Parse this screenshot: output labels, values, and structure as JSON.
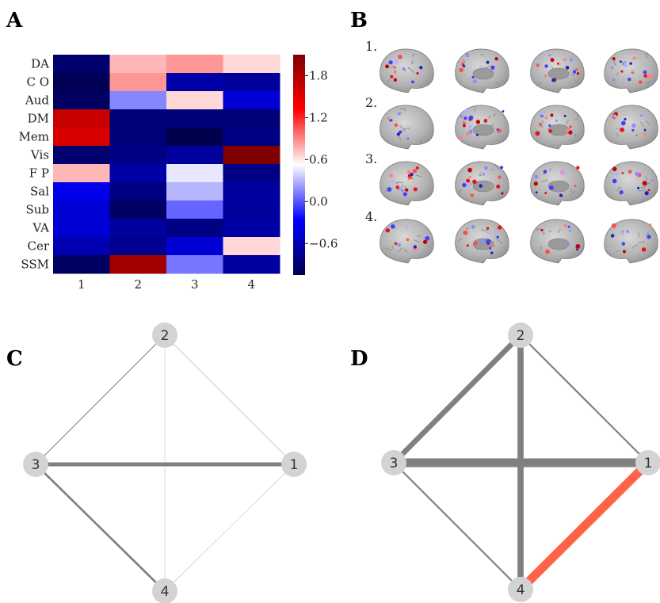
{
  "panels": {
    "a": "A",
    "b": "B",
    "c": "C",
    "d": "D"
  },
  "chart_data": [
    {
      "type": "heatmap",
      "rows": [
        "DA",
        "C O",
        "Aud",
        "DM",
        "Mem",
        "Vis",
        "F P",
        "Sal",
        "Sub",
        "VA",
        "Cer",
        "SSM"
      ],
      "columns": [
        "1",
        "2",
        "3",
        "4"
      ],
      "values": [
        [
          -0.9,
          0.75,
          0.85,
          0.65
        ],
        [
          -1.0,
          0.85,
          -0.65,
          -0.7
        ],
        [
          -0.95,
          0.15,
          0.65,
          -0.45
        ],
        [
          1.65,
          -0.85,
          -0.85,
          -0.85
        ],
        [
          1.55,
          -0.85,
          -1.05,
          -0.8
        ],
        [
          -0.9,
          -0.8,
          -0.7,
          2.1
        ],
        [
          0.75,
          -0.65,
          0.45,
          -0.8
        ],
        [
          -0.35,
          -0.8,
          0.3,
          -0.7
        ],
        [
          -0.45,
          -0.95,
          0.05,
          -0.7
        ],
        [
          -0.45,
          -0.7,
          -0.8,
          -0.65
        ],
        [
          -0.6,
          -0.75,
          -0.45,
          0.65
        ],
        [
          -0.95,
          1.9,
          0.1,
          -0.7
        ]
      ],
      "colorbar": {
        "ticks": [
          "1.8",
          "1.2",
          "0.6",
          "0.0",
          "−0.6"
        ],
        "tick_values": [
          1.8,
          1.2,
          0.6,
          0.0,
          -0.6
        ],
        "range": [
          -1.05,
          2.1
        ],
        "colormap": "seismic"
      }
    },
    {
      "type": "graph",
      "nodes": [
        "1",
        "2",
        "3",
        "4"
      ],
      "edges": [
        {
          "source": "3",
          "target": "1",
          "weight": 0.55,
          "color": "#808080"
        },
        {
          "source": "3",
          "target": "4",
          "weight": 0.3,
          "color": "#808080"
        },
        {
          "source": "3",
          "target": "2",
          "weight": 0.12,
          "color": "#808080"
        },
        {
          "source": "2",
          "target": "1",
          "weight": 0.08,
          "color": "#808080"
        },
        {
          "source": "1",
          "target": "4",
          "weight": 0.06,
          "color": "#808080"
        },
        {
          "source": "2",
          "target": "4",
          "weight": 0.03,
          "color": "#808080"
        }
      ]
    },
    {
      "type": "graph",
      "nodes": [
        "1",
        "2",
        "3",
        "4"
      ],
      "edges": [
        {
          "source": "3",
          "target": "1",
          "weight": 1.0,
          "color": "#808080"
        },
        {
          "source": "2",
          "target": "4",
          "weight": 0.7,
          "color": "#808080"
        },
        {
          "source": "3",
          "target": "2",
          "weight": 0.6,
          "color": "#808080"
        },
        {
          "source": "1",
          "target": "4",
          "weight": 1.0,
          "color": "#ff6347"
        },
        {
          "source": "2",
          "target": "1",
          "weight": 0.2,
          "color": "#808080"
        },
        {
          "source": "3",
          "target": "4",
          "weight": 0.2,
          "color": "#808080"
        }
      ]
    }
  ],
  "brains": {
    "row_labels": [
      "1.",
      "2.",
      "3.",
      "4."
    ],
    "views": [
      "lateral",
      "medial",
      "medial",
      "lateral"
    ]
  }
}
